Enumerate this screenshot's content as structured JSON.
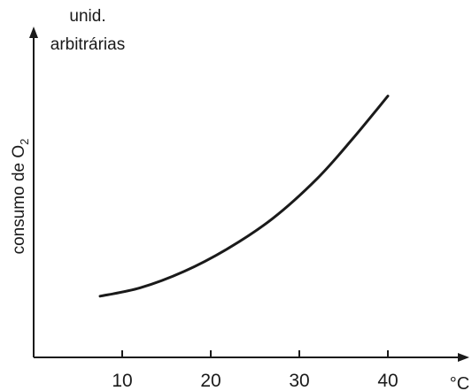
{
  "chart_data": {
    "type": "line",
    "y_unit_line1": "unid.",
    "y_unit_line2": "arbitrárias",
    "ylabel_main": "consumo de O",
    "ylabel_sub": "2",
    "x_unit": "°C",
    "x_ticks": [
      10,
      20,
      30,
      40
    ],
    "x_tick_labels": [
      "10",
      "20",
      "30",
      "40"
    ],
    "xlim": [
      0,
      49
    ],
    "ylim": [
      0,
      100
    ],
    "grid": false,
    "series": [
      {
        "x": [
          7.5,
          12,
          17,
          22,
          27,
          32,
          36,
          40
        ],
        "y": [
          18.5,
          21,
          26,
          33,
          42,
          54,
          66,
          79
        ],
        "color": "#1a1a1a"
      }
    ]
  }
}
